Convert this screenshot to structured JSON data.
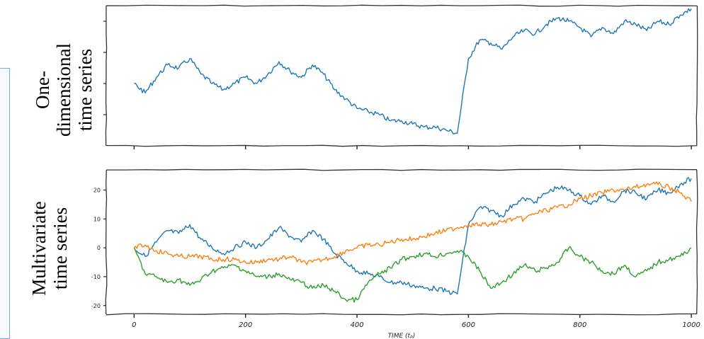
{
  "labels": {
    "top_line1": "One-",
    "top_line2": "dimensional",
    "top_line3": "time series",
    "bottom_line1": "Multivariate",
    "bottom_line2": "time series"
  },
  "colors": {
    "blue": "#1f77b4",
    "orange": "#ff7f0e",
    "green": "#2ca02c",
    "frame_accent": "#7fa7d8"
  },
  "chart_data": [
    {
      "type": "line",
      "title": "",
      "xlabel": "",
      "ylabel": "",
      "xlim": [
        -50,
        1010
      ],
      "ylim": [
        -20,
        25
      ],
      "x_ticks": [
        0,
        200,
        400,
        600,
        800,
        1000
      ],
      "y_ticks": [
        -10,
        0,
        10,
        20
      ],
      "tick_labels_shown": false,
      "grid": false,
      "series": [
        {
          "color": "blue",
          "x": [
            0,
            20,
            40,
            60,
            80,
            100,
            120,
            140,
            160,
            180,
            200,
            220,
            240,
            260,
            280,
            300,
            320,
            340,
            360,
            380,
            400,
            420,
            440,
            460,
            480,
            500,
            520,
            540,
            560,
            580,
            600,
            620,
            640,
            660,
            680,
            700,
            720,
            740,
            760,
            780,
            800,
            820,
            840,
            860,
            880,
            900,
            920,
            940,
            960,
            980,
            1000
          ],
          "y": [
            0,
            -3,
            2,
            6,
            5,
            8,
            3,
            0,
            -2,
            0,
            2,
            0,
            3,
            7,
            4,
            2,
            6,
            3,
            -2,
            -5,
            -8,
            -9,
            -10,
            -12,
            -12,
            -13,
            -14,
            -14,
            -15,
            -16,
            8,
            14,
            13,
            11,
            15,
            17,
            16,
            19,
            21,
            20,
            18,
            15,
            18,
            16,
            20,
            19,
            17,
            20,
            19,
            22,
            24
          ]
        }
      ]
    },
    {
      "type": "line",
      "title": "",
      "xlabel": "TIME (tₚ)",
      "ylabel": "",
      "xlim": [
        -50,
        1010
      ],
      "ylim": [
        -23,
        27
      ],
      "x_ticks": [
        0,
        200,
        400,
        600,
        800,
        1000
      ],
      "y_ticks": [
        -20,
        -10,
        0,
        10,
        20
      ],
      "grid": false,
      "series": [
        {
          "color": "blue",
          "x": [
            0,
            20,
            40,
            60,
            80,
            100,
            120,
            140,
            160,
            180,
            200,
            220,
            240,
            260,
            280,
            300,
            320,
            340,
            360,
            380,
            400,
            420,
            440,
            460,
            480,
            500,
            520,
            540,
            560,
            580,
            600,
            620,
            640,
            660,
            680,
            700,
            720,
            740,
            760,
            780,
            800,
            820,
            840,
            860,
            880,
            900,
            920,
            940,
            960,
            980,
            1000
          ],
          "y": [
            0,
            -3,
            2,
            6,
            5,
            8,
            3,
            0,
            -2,
            0,
            2,
            0,
            3,
            7,
            4,
            2,
            6,
            3,
            -2,
            -5,
            -8,
            -9,
            -10,
            -12,
            -12,
            -13,
            -14,
            -14,
            -15,
            -16,
            8,
            14,
            13,
            11,
            15,
            17,
            16,
            19,
            21,
            20,
            18,
            15,
            18,
            16,
            20,
            19,
            17,
            20,
            19,
            22,
            24
          ]
        },
        {
          "color": "orange",
          "x": [
            0,
            20,
            40,
            60,
            80,
            100,
            120,
            140,
            160,
            180,
            200,
            220,
            240,
            260,
            280,
            300,
            320,
            340,
            360,
            380,
            400,
            420,
            440,
            460,
            480,
            500,
            520,
            540,
            560,
            580,
            600,
            620,
            640,
            660,
            680,
            700,
            720,
            740,
            760,
            780,
            800,
            820,
            840,
            860,
            880,
            900,
            920,
            940,
            960,
            980,
            1000
          ],
          "y": [
            0,
            1,
            -1,
            -2,
            -3,
            -3,
            -3,
            -4,
            -4,
            -4,
            -5,
            -5,
            -4,
            -4,
            -3,
            -5,
            -5,
            -4,
            -3,
            -1,
            0,
            1,
            1,
            2,
            3,
            3,
            4,
            5,
            6,
            7,
            8,
            8,
            8,
            9,
            10,
            10,
            12,
            13,
            14,
            15,
            17,
            18,
            19,
            20,
            20,
            21,
            22,
            22,
            21,
            19,
            16
          ]
        },
        {
          "color": "green",
          "x": [
            0,
            20,
            40,
            60,
            80,
            100,
            120,
            140,
            160,
            180,
            200,
            220,
            240,
            260,
            280,
            300,
            320,
            340,
            360,
            380,
            400,
            420,
            440,
            460,
            480,
            500,
            520,
            540,
            560,
            580,
            600,
            620,
            640,
            660,
            680,
            700,
            720,
            740,
            760,
            780,
            800,
            820,
            840,
            860,
            880,
            900,
            920,
            940,
            960,
            980,
            1000
          ],
          "y": [
            0,
            -9,
            -10,
            -12,
            -11,
            -13,
            -11,
            -8,
            -7,
            -6,
            -8,
            -10,
            -10,
            -9,
            -11,
            -12,
            -14,
            -13,
            -15,
            -18,
            -18,
            -12,
            -9,
            -7,
            -4,
            -3,
            -2,
            -3,
            -2,
            -1,
            -3,
            -8,
            -14,
            -12,
            -9,
            -6,
            -8,
            -7,
            -5,
            0,
            -3,
            -5,
            -8,
            -9,
            -6,
            -10,
            -8,
            -5,
            -4,
            -3,
            0
          ]
        }
      ]
    }
  ]
}
